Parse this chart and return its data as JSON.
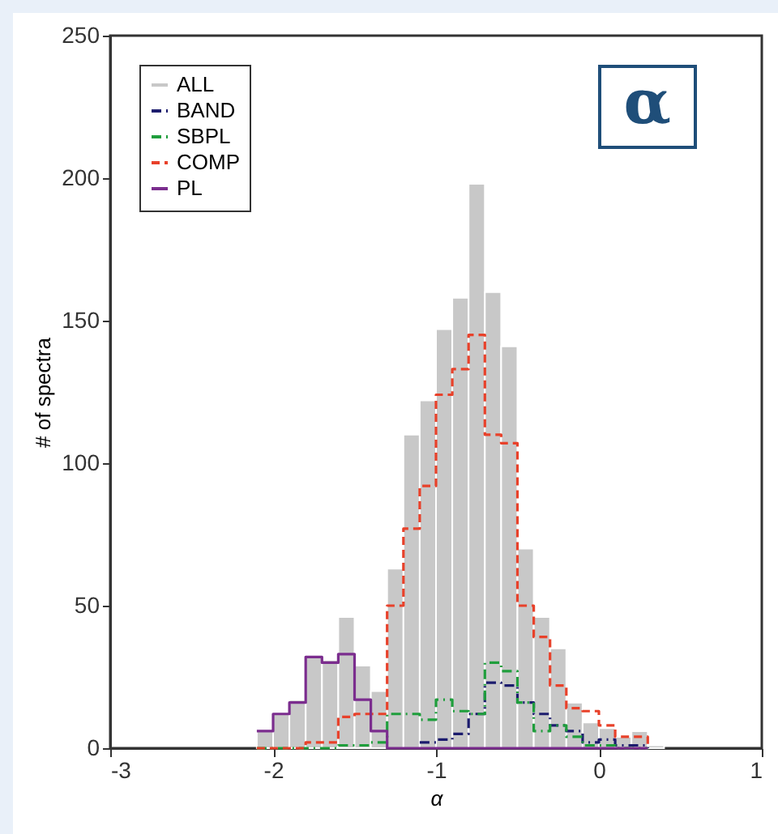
{
  "chart_data": {
    "type": "histogram",
    "xlabel": "α",
    "ylabel": "# of spectra",
    "annotations": [
      "α"
    ],
    "bins": [
      -2.1,
      -2.0,
      -1.9,
      -1.8,
      -1.7,
      -1.6,
      -1.5,
      -1.4,
      -1.3,
      -1.2,
      -1.1,
      -1.0,
      -0.9,
      -0.8,
      -0.7,
      -0.6,
      -0.5,
      -0.4,
      -0.3,
      -0.2,
      -0.1,
      0.0,
      0.1,
      0.2,
      0.3,
      0.4
    ],
    "series": [
      {
        "name": "ALL",
        "color": "#c8c8c8",
        "values": [
          6,
          12,
          17,
          32,
          31,
          46,
          29,
          20,
          63,
          110,
          122,
          147,
          158,
          198,
          160,
          141,
          70,
          46,
          35,
          16,
          9,
          7,
          4,
          6,
          1
        ]
      },
      {
        "name": "BAND",
        "type": "step",
        "x": [
          -1.1,
          -1.0,
          -0.9,
          -0.8,
          -0.7,
          -0.6,
          -0.5,
          -0.4,
          -0.3,
          -0.2,
          -0.1,
          0.0,
          0.1,
          0.2,
          0.3
        ],
        "line_style": "dashdot",
        "color": "#1c1c6e",
        "values": [
          2,
          3,
          5,
          12,
          23,
          22,
          16,
          12,
          8,
          6,
          2,
          3,
          1,
          1,
          0
        ]
      },
      {
        "name": "SBPL",
        "type": "step",
        "x": [
          -2.1,
          -2.0,
          -1.9,
          -1.8,
          -1.7,
          -1.6,
          -1.5,
          -1.4,
          -1.3,
          -1.2,
          -1.1,
          -1.0,
          -0.9,
          -0.8,
          -0.7,
          -0.6,
          -0.5,
          -0.4,
          -0.3,
          -0.2,
          -0.1,
          0.0,
          0.1,
          0.2,
          0.3
        ],
        "line_style": "dashdot",
        "color": "#1f9e3c",
        "values": [
          0,
          0,
          0,
          0,
          0,
          1,
          1,
          2,
          12,
          12,
          10,
          17,
          13,
          12,
          30,
          27,
          16,
          6,
          8,
          4,
          1,
          1,
          0,
          0,
          0
        ]
      },
      {
        "name": "COMP",
        "type": "step",
        "x": [
          -2.1,
          -2.0,
          -1.9,
          -1.8,
          -1.7,
          -1.6,
          -1.5,
          -1.4,
          -1.3,
          -1.2,
          -1.1,
          -1.0,
          -0.9,
          -0.8,
          -0.7,
          -0.6,
          -0.5,
          -0.4,
          -0.3,
          -0.2,
          -0.1,
          0.0,
          0.1,
          0.2,
          0.3
        ],
        "line_style": "dashed",
        "color": "#e8412a",
        "values": [
          0,
          0,
          0,
          2,
          2,
          11,
          12,
          12,
          50,
          77,
          92,
          124,
          133,
          145,
          110,
          107,
          50,
          39,
          22,
          14,
          13,
          8,
          4,
          4,
          1
        ]
      },
      {
        "name": "PL",
        "type": "step",
        "x": [
          -2.1,
          -2.0,
          -1.9,
          -1.8,
          -1.7,
          -1.6,
          -1.5,
          -1.4,
          -1.3,
          -1.2,
          -1.1,
          -1.0,
          -0.9,
          -0.8,
          -0.7,
          -0.6,
          -0.5,
          -0.4,
          -0.3,
          -0.2,
          -0.1,
          0.0,
          0.1,
          0.2,
          0.3
        ],
        "line_style": "solid",
        "color": "#7b2d8e",
        "values": [
          6,
          12,
          16,
          32,
          30,
          33,
          17,
          6,
          0,
          0,
          0,
          0,
          0,
          0,
          0,
          0,
          0,
          0,
          0,
          0,
          0,
          0,
          0,
          0,
          0
        ]
      }
    ],
    "xlim": [
      -3,
      1
    ],
    "xticks": [
      -3,
      -2,
      -1,
      0,
      1
    ],
    "ylim": [
      0,
      250
    ],
    "yticks": [
      0,
      50,
      100,
      150,
      200,
      250
    ],
    "legend": "top left"
  }
}
